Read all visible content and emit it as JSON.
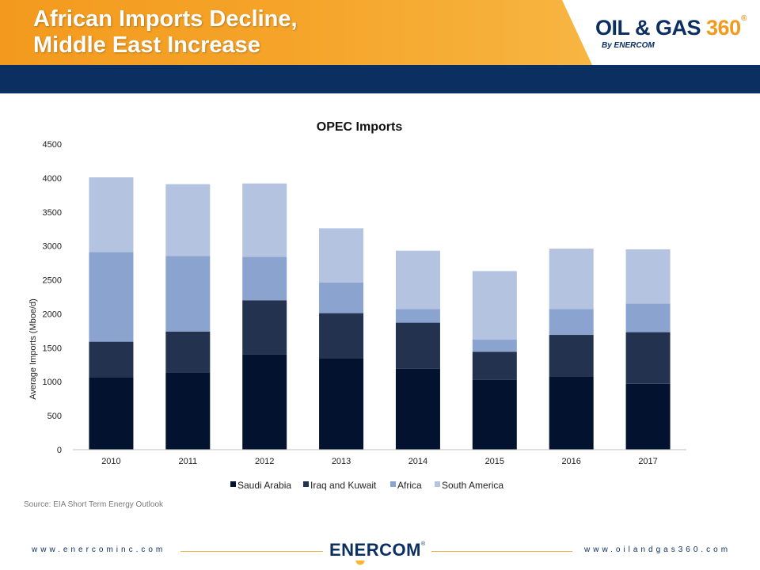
{
  "header": {
    "title_line1": "African Imports Decline,",
    "title_line2": "Middle East Increase",
    "logo_main_a": "OIL & GAS ",
    "logo_main_b": "360",
    "logo_reg": "®",
    "logo_sub": "By ENERCOM"
  },
  "colors": {
    "header_orange": "#f39a1e",
    "navy": "#0b2f61",
    "saudi": "#03122e",
    "iraq": "#22324f",
    "africa": "#8aa3cf",
    "south_america": "#b4c3e0"
  },
  "chart_data": {
    "type": "bar",
    "stacked": true,
    "title": "OPEC Imports",
    "xlabel": "",
    "ylabel": "Average Imports (Mboe/d)",
    "ylim": [
      0,
      4500
    ],
    "yticks": [
      0,
      500,
      1000,
      1500,
      2000,
      2500,
      3000,
      3500,
      4000,
      4500
    ],
    "grid": false,
    "legend": "bottom",
    "categories": [
      "2010",
      "2011",
      "2012",
      "2013",
      "2014",
      "2015",
      "2016",
      "2017"
    ],
    "series": [
      {
        "name": "Saudi Arabia",
        "values": [
          1070,
          1140,
          1400,
          1350,
          1190,
          1030,
          1080,
          970
        ]
      },
      {
        "name": "Iraq and Kuwait",
        "values": [
          520,
          600,
          800,
          660,
          680,
          410,
          610,
          760
        ]
      },
      {
        "name": "Africa",
        "values": [
          1320,
          1110,
          640,
          450,
          200,
          180,
          380,
          420
        ]
      },
      {
        "name": "South America",
        "values": [
          1100,
          1060,
          1080,
          800,
          860,
          1010,
          890,
          800
        ]
      }
    ]
  },
  "source": "Source: EIA Short Term Energy Outlook",
  "footer": {
    "left_url": "www.enercominc.com",
    "logo": "ENERCOM",
    "logo_reg": "®",
    "right_url": "www.oilandgas360.com"
  }
}
